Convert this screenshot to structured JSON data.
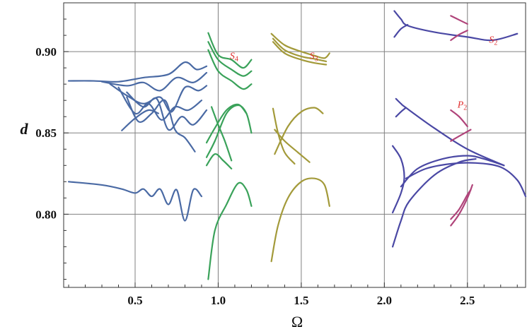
{
  "chart_data": {
    "type": "line",
    "xlabel": "Ω",
    "ylabel": "d",
    "xlim": [
      0.07,
      2.85
    ],
    "ylim": [
      0.755,
      0.93
    ],
    "x_ticks": [
      {
        "value": 0.5,
        "label": "0.5"
      },
      {
        "value": 1.0,
        "label": "1.0"
      },
      {
        "value": 1.5,
        "label": "1.5"
      },
      {
        "value": 2.0,
        "label": "2.0"
      },
      {
        "value": 2.5,
        "label": "2.5"
      }
    ],
    "y_ticks": [
      {
        "value": 0.8,
        "label": "0.80"
      },
      {
        "value": 0.85,
        "label": "0.85"
      },
      {
        "value": 0.9,
        "label": "0.90"
      }
    ],
    "grid": true,
    "colors": {
      "blue": "#4a6aa4",
      "green": "#3aa25a",
      "olive": "#a39a3a",
      "indigo": "#4a48a4",
      "magenta": "#b0447a",
      "annotation": "#e03030"
    },
    "annotations": [
      {
        "letter": "S",
        "sub": "4",
        "x": 1.07,
        "y": 0.8955,
        "color": "#e03030"
      },
      {
        "letter": "S",
        "sub": "3",
        "x": 1.55,
        "y": 0.8955,
        "color": "#e03030"
      },
      {
        "letter": "S",
        "sub": "2",
        "x": 2.63,
        "y": 0.9055,
        "color": "#e03030"
      },
      {
        "letter": "P",
        "sub": "2",
        "x": 2.44,
        "y": 0.8655,
        "color": "#e03030"
      }
    ],
    "series": [
      {
        "color": "#4a6aa4",
        "points": [
          [
            0.1,
            0.882
          ],
          [
            0.25,
            0.882
          ],
          [
            0.4,
            0.8815
          ],
          [
            0.55,
            0.884
          ],
          [
            0.7,
            0.886
          ],
          [
            0.8,
            0.8935
          ],
          [
            0.87,
            0.889
          ],
          [
            0.93,
            0.891
          ]
        ]
      },
      {
        "color": "#4a6aa4",
        "points": [
          [
            0.3,
            0.8815
          ],
          [
            0.45,
            0.879
          ],
          [
            0.55,
            0.881
          ],
          [
            0.65,
            0.876
          ],
          [
            0.75,
            0.884
          ],
          [
            0.85,
            0.881
          ],
          [
            0.93,
            0.887
          ]
        ]
      },
      {
        "color": "#4a6aa4",
        "points": [
          [
            0.35,
            0.88
          ],
          [
            0.45,
            0.873
          ],
          [
            0.55,
            0.868
          ],
          [
            0.65,
            0.872
          ],
          [
            0.72,
            0.863
          ],
          [
            0.8,
            0.878
          ],
          [
            0.88,
            0.876
          ],
          [
            0.93,
            0.879
          ]
        ]
      },
      {
        "color": "#4a6aa4",
        "points": [
          [
            0.4,
            0.878
          ],
          [
            0.5,
            0.862
          ],
          [
            0.58,
            0.868
          ],
          [
            0.66,
            0.858
          ],
          [
            0.74,
            0.866
          ],
          [
            0.82,
            0.864
          ],
          [
            0.9,
            0.87
          ]
        ]
      },
      {
        "color": "#4a6aa4",
        "points": [
          [
            0.45,
            0.875
          ],
          [
            0.55,
            0.866
          ],
          [
            0.63,
            0.871
          ],
          [
            0.7,
            0.852
          ],
          [
            0.78,
            0.86
          ],
          [
            0.85,
            0.855
          ],
          [
            0.93,
            0.864
          ]
        ]
      },
      {
        "color": "#4a6aa4",
        "points": [
          [
            0.45,
            0.872
          ],
          [
            0.52,
            0.857
          ],
          [
            0.6,
            0.862
          ],
          [
            0.68,
            0.87
          ],
          [
            0.74,
            0.852
          ],
          [
            0.8,
            0.847
          ],
          [
            0.86,
            0.8385
          ]
        ]
      },
      {
        "color": "#4a6aa4",
        "points": [
          [
            0.42,
            0.8515
          ],
          [
            0.5,
            0.859
          ],
          [
            0.58,
            0.864
          ],
          [
            0.64,
            0.862
          ]
        ]
      },
      {
        "color": "#4a6aa4",
        "points": [
          [
            0.1,
            0.82
          ],
          [
            0.3,
            0.818
          ],
          [
            0.42,
            0.8155
          ],
          [
            0.5,
            0.813
          ],
          [
            0.55,
            0.8155
          ],
          [
            0.6,
            0.811
          ],
          [
            0.65,
            0.8155
          ],
          [
            0.7,
            0.806
          ],
          [
            0.75,
            0.815
          ],
          [
            0.8,
            0.796
          ],
          [
            0.85,
            0.815
          ],
          [
            0.9,
            0.811
          ]
        ]
      },
      {
        "color": "#3aa25a",
        "points": [
          [
            0.94,
            0.9115
          ],
          [
            1.0,
            0.898
          ],
          [
            1.08,
            0.895
          ],
          [
            1.15,
            0.89
          ],
          [
            1.2,
            0.895
          ]
        ]
      },
      {
        "color": "#3aa25a",
        "points": [
          [
            0.94,
            0.906
          ],
          [
            1.0,
            0.895
          ],
          [
            1.08,
            0.889
          ],
          [
            1.15,
            0.885
          ],
          [
            1.2,
            0.888
          ]
        ]
      },
      {
        "color": "#3aa25a",
        "points": [
          [
            0.94,
            0.901
          ],
          [
            1.0,
            0.888
          ],
          [
            1.08,
            0.882
          ],
          [
            1.15,
            0.877
          ],
          [
            1.2,
            0.88
          ]
        ]
      },
      {
        "color": "#3aa25a",
        "points": [
          [
            0.93,
            0.835
          ],
          [
            0.98,
            0.845
          ],
          [
            1.05,
            0.862
          ],
          [
            1.12,
            0.867
          ],
          [
            1.17,
            0.862
          ],
          [
            1.2,
            0.85
          ]
        ]
      },
      {
        "color": "#3aa25a",
        "points": [
          [
            0.93,
            0.844
          ],
          [
            0.98,
            0.853
          ],
          [
            1.05,
            0.864
          ],
          [
            1.12,
            0.8675
          ],
          [
            1.17,
            0.862
          ]
        ]
      },
      {
        "color": "#3aa25a",
        "points": [
          [
            0.93,
            0.83
          ],
          [
            0.98,
            0.837
          ],
          [
            1.03,
            0.833
          ],
          [
            1.08,
            0.828
          ]
        ]
      },
      {
        "color": "#3aa25a",
        "points": [
          [
            0.96,
            0.866
          ],
          [
            1.0,
            0.855
          ],
          [
            1.04,
            0.845
          ],
          [
            1.08,
            0.833
          ]
        ]
      },
      {
        "color": "#3aa25a",
        "points": [
          [
            0.94,
            0.76
          ],
          [
            0.98,
            0.79
          ],
          [
            1.05,
            0.806
          ],
          [
            1.12,
            0.819
          ],
          [
            1.17,
            0.815
          ],
          [
            1.2,
            0.805
          ]
        ]
      },
      {
        "color": "#a39a3a",
        "points": [
          [
            1.32,
            0.911
          ],
          [
            1.4,
            0.904
          ],
          [
            1.5,
            0.9
          ],
          [
            1.58,
            0.8975
          ],
          [
            1.64,
            0.896
          ],
          [
            1.67,
            0.899
          ]
        ]
      },
      {
        "color": "#a39a3a",
        "points": [
          [
            1.33,
            0.908
          ],
          [
            1.4,
            0.901
          ],
          [
            1.5,
            0.897
          ],
          [
            1.58,
            0.8955
          ],
          [
            1.65,
            0.894
          ]
        ]
      },
      {
        "color": "#a39a3a",
        "points": [
          [
            1.33,
            0.906
          ],
          [
            1.4,
            0.899
          ],
          [
            1.5,
            0.895
          ],
          [
            1.58,
            0.893
          ],
          [
            1.65,
            0.892
          ]
        ]
      },
      {
        "color": "#a39a3a",
        "points": [
          [
            1.33,
            0.865
          ],
          [
            1.36,
            0.85
          ],
          [
            1.4,
            0.838
          ],
          [
            1.46,
            0.831
          ]
        ]
      },
      {
        "color": "#a39a3a",
        "points": [
          [
            1.34,
            0.852
          ],
          [
            1.4,
            0.845
          ],
          [
            1.48,
            0.838
          ],
          [
            1.55,
            0.832
          ]
        ]
      },
      {
        "color": "#a39a3a",
        "points": [
          [
            1.34,
            0.837
          ],
          [
            1.42,
            0.854
          ],
          [
            1.5,
            0.863
          ],
          [
            1.58,
            0.8655
          ],
          [
            1.63,
            0.862
          ]
        ]
      },
      {
        "color": "#a39a3a",
        "points": [
          [
            1.32,
            0.771
          ],
          [
            1.36,
            0.793
          ],
          [
            1.42,
            0.81
          ],
          [
            1.5,
            0.82
          ],
          [
            1.58,
            0.822
          ],
          [
            1.64,
            0.818
          ],
          [
            1.67,
            0.805
          ]
        ]
      },
      {
        "color": "#4a48a4",
        "points": [
          [
            2.06,
            0.925
          ],
          [
            2.1,
            0.92
          ],
          [
            2.14,
            0.916
          ],
          [
            2.3,
            0.912
          ],
          [
            2.5,
            0.909
          ],
          [
            2.65,
            0.907
          ],
          [
            2.8,
            0.911
          ]
        ]
      },
      {
        "color": "#4a48a4",
        "points": [
          [
            2.06,
            0.909
          ],
          [
            2.1,
            0.914
          ],
          [
            2.14,
            0.9165
          ]
        ]
      },
      {
        "color": "#4a48a4",
        "points": [
          [
            2.07,
            0.871
          ],
          [
            2.1,
            0.868
          ],
          [
            2.13,
            0.8655
          ],
          [
            2.3,
            0.853
          ],
          [
            2.5,
            0.84
          ],
          [
            2.72,
            0.83
          ]
        ]
      },
      {
        "color": "#4a48a4",
        "points": [
          [
            2.07,
            0.86
          ],
          [
            2.1,
            0.863
          ],
          [
            2.13,
            0.8655
          ]
        ]
      },
      {
        "color": "#4a48a4",
        "points": [
          [
            2.05,
            0.842
          ],
          [
            2.1,
            0.834
          ],
          [
            2.12,
            0.823
          ],
          [
            2.1,
            0.813
          ],
          [
            2.05,
            0.801
          ]
        ]
      },
      {
        "color": "#4a48a4",
        "points": [
          [
            2.1,
            0.817
          ],
          [
            2.2,
            0.828
          ],
          [
            2.35,
            0.834
          ],
          [
            2.5,
            0.836
          ],
          [
            2.6,
            0.834
          ],
          [
            2.72,
            0.83
          ]
        ]
      },
      {
        "color": "#4a48a4",
        "points": [
          [
            2.13,
            0.822
          ],
          [
            2.25,
            0.828
          ],
          [
            2.4,
            0.831
          ],
          [
            2.55,
            0.8315
          ],
          [
            2.7,
            0.829
          ],
          [
            2.8,
            0.821
          ],
          [
            2.85,
            0.811
          ]
        ]
      },
      {
        "color": "#4a48a4",
        "points": [
          [
            2.05,
            0.78
          ],
          [
            2.1,
            0.796
          ],
          [
            2.15,
            0.808
          ],
          [
            2.3,
            0.824
          ],
          [
            2.45,
            0.832
          ],
          [
            2.55,
            0.834
          ]
        ]
      },
      {
        "color": "#b0447a",
        "points": [
          [
            2.4,
            0.922
          ],
          [
            2.45,
            0.9195
          ],
          [
            2.5,
            0.917
          ]
        ]
      },
      {
        "color": "#b0447a",
        "points": [
          [
            2.4,
            0.907
          ],
          [
            2.45,
            0.9105
          ],
          [
            2.5,
            0.913
          ]
        ]
      },
      {
        "color": "#b0447a",
        "points": [
          [
            2.4,
            0.864
          ],
          [
            2.45,
            0.86
          ],
          [
            2.5,
            0.854
          ]
        ]
      },
      {
        "color": "#b0447a",
        "points": [
          [
            2.4,
            0.845
          ],
          [
            2.45,
            0.848
          ],
          [
            2.52,
            0.852
          ]
        ]
      },
      {
        "color": "#b0447a",
        "points": [
          [
            2.4,
            0.793
          ],
          [
            2.45,
            0.8
          ],
          [
            2.5,
            0.81
          ],
          [
            2.53,
            0.818
          ]
        ]
      },
      {
        "color": "#b0447a",
        "points": [
          [
            2.4,
            0.797
          ],
          [
            2.45,
            0.803
          ],
          [
            2.5,
            0.812
          ],
          [
            2.52,
            0.815
          ]
        ]
      }
    ]
  }
}
